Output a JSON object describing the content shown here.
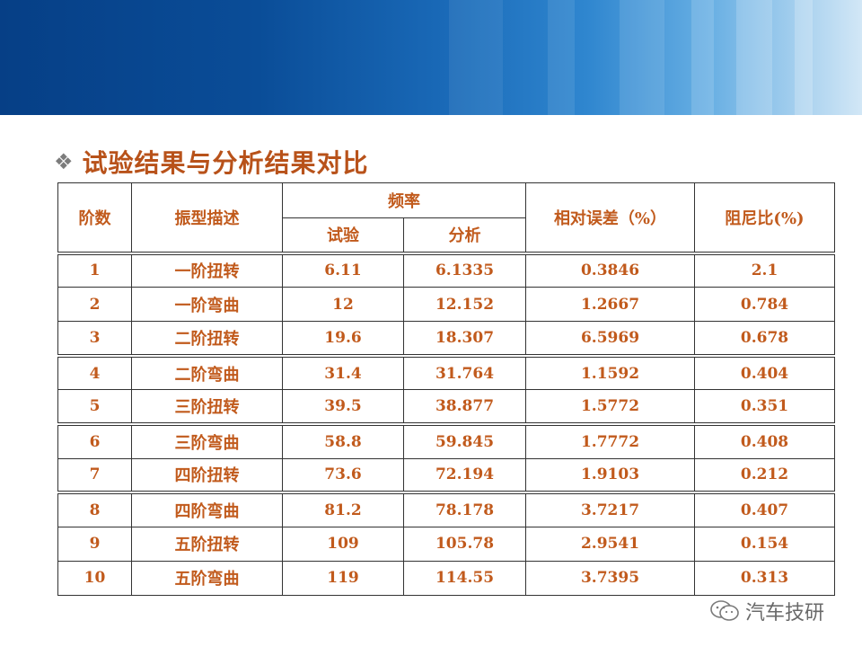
{
  "title": "试验结果与分析结果对比",
  "table": {
    "header": {
      "order": "阶数",
      "mode": "振型描述",
      "frequency": "频率",
      "test": "试验",
      "analysis": "分析",
      "error": "相对误差（%）",
      "damping": "阻尼比(%)"
    },
    "rows": [
      {
        "order": "1",
        "mode": "一阶扭转",
        "test": "6.11",
        "analysis": "6.1335",
        "error": "0.3846",
        "damping": "2.1"
      },
      {
        "order": "2",
        "mode": "一阶弯曲",
        "test": "12",
        "analysis": "12.152",
        "error": "1.2667",
        "damping": "0.784"
      },
      {
        "order": "3",
        "mode": "二阶扭转",
        "test": "19.6",
        "analysis": "18.307",
        "error": "6.5969",
        "damping": "0.678"
      },
      {
        "order": "4",
        "mode": "二阶弯曲",
        "test": "31.4",
        "analysis": "31.764",
        "error": "1.1592",
        "damping": "0.404"
      },
      {
        "order": "5",
        "mode": "三阶扭转",
        "test": "39.5",
        "analysis": "38.877",
        "error": "1.5772",
        "damping": "0.351"
      },
      {
        "order": "6",
        "mode": "三阶弯曲",
        "test": "58.8",
        "analysis": "59.845",
        "error": "1.7772",
        "damping": "0.408"
      },
      {
        "order": "7",
        "mode": "四阶扭转",
        "test": "73.6",
        "analysis": "72.194",
        "error": "1.9103",
        "damping": "0.212"
      },
      {
        "order": "8",
        "mode": "四阶弯曲",
        "test": "81.2",
        "analysis": "78.178",
        "error": "3.7217",
        "damping": "0.407"
      },
      {
        "order": "9",
        "mode": "五阶扭转",
        "test": "109",
        "analysis": "105.78",
        "error": "2.9541",
        "damping": "0.154"
      },
      {
        "order": "10",
        "mode": "五阶弯曲",
        "test": "119",
        "analysis": "114.55",
        "error": "3.7395",
        "damping": "0.313"
      }
    ]
  },
  "watermark": {
    "text": "汽车技研",
    "icon": "wechat-icon"
  },
  "colors": {
    "accent": "#c15a1c",
    "title": "#b8521a",
    "banner": "#0a4d98"
  }
}
